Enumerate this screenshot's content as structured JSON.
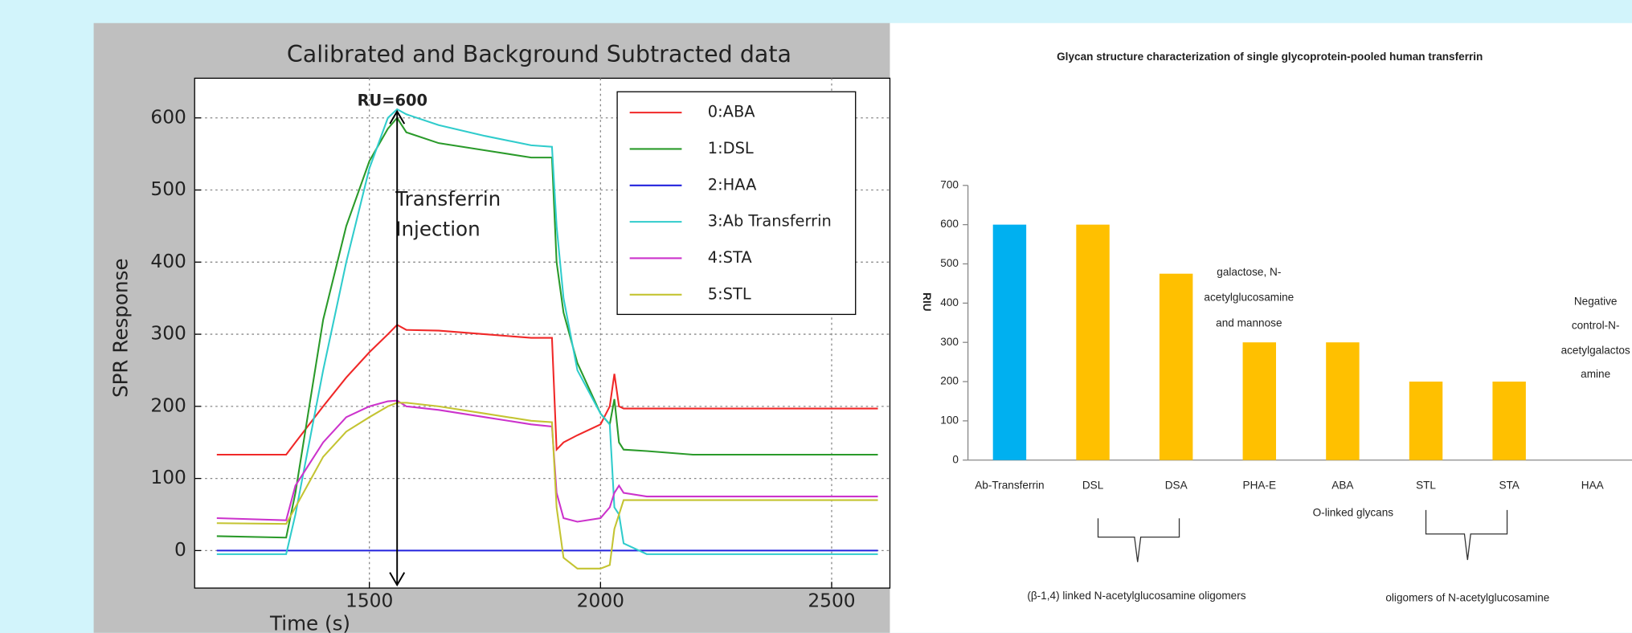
{
  "chart_data": [
    {
      "type": "line",
      "title": "Calibrated and Background Subtracted data",
      "x_label": "Time (s)",
      "y_label": "SPR Response",
      "annotations": [
        "RU=600",
        "Transferrin",
        "Injection"
      ],
      "arrow_x": 1560,
      "xlim": [
        1122,
        2626
      ],
      "ylim": [
        -52,
        655
      ],
      "xticks": [
        1500,
        2000,
        2500
      ],
      "yticks": [
        0,
        100,
        200,
        300,
        400,
        500,
        600
      ],
      "grid": true,
      "legend": "upper right",
      "x": [
        1170,
        1320,
        1340,
        1400,
        1450,
        1500,
        1540,
        1560,
        1580,
        1650,
        1750,
        1850,
        1895,
        1905,
        1920,
        1950,
        2000,
        2020,
        2030,
        2040,
        2050,
        2100,
        2200,
        2600
      ],
      "series": [
        {
          "name": "0:ABA",
          "color": "#f02828",
          "values": [
            133,
            133,
            150,
            200,
            240,
            275,
            300,
            313,
            306,
            305,
            300,
            295,
            295,
            140,
            150,
            160,
            175,
            200,
            245,
            200,
            197,
            197,
            197,
            197
          ]
        },
        {
          "name": "1:DSL",
          "color": "#2a9a2a",
          "values": [
            20,
            18,
            80,
            320,
            450,
            540,
            585,
            600,
            580,
            565,
            555,
            545,
            545,
            400,
            330,
            260,
            190,
            175,
            210,
            150,
            140,
            138,
            133,
            133
          ]
        },
        {
          "name": "2:HAA",
          "color": "#2222dd",
          "values": [
            0,
            0,
            0,
            0,
            0,
            0,
            0,
            0,
            0,
            0,
            0,
            0,
            0,
            0,
            0,
            0,
            0,
            0,
            0,
            0,
            0,
            0,
            0,
            0
          ]
        },
        {
          "name": "3:Ab Transferrin",
          "color": "#30cccc",
          "values": [
            -5,
            -5,
            50,
            250,
            400,
            530,
            600,
            612,
            605,
            590,
            575,
            562,
            560,
            450,
            350,
            250,
            190,
            175,
            60,
            50,
            10,
            -5,
            -5,
            -5
          ]
        },
        {
          "name": "4:STA",
          "color": "#cc33cc",
          "values": [
            45,
            42,
            90,
            150,
            185,
            200,
            207,
            208,
            200,
            195,
            185,
            175,
            172,
            80,
            45,
            40,
            45,
            60,
            80,
            90,
            80,
            75,
            75,
            75
          ]
        },
        {
          "name": "5:STL",
          "color": "#c4c432",
          "values": [
            38,
            37,
            60,
            130,
            165,
            185,
            200,
            205,
            205,
            200,
            190,
            180,
            178,
            60,
            -10,
            -25,
            -25,
            -20,
            30,
            50,
            70,
            70,
            70,
            70
          ]
        }
      ]
    },
    {
      "type": "bar",
      "title": "Glycan structure characterization of single glycoprotein-pooled human transferrin",
      "y_label": "RIU",
      "categories": [
        "Ab-Transferrin",
        "DSL",
        "DSA",
        "PHA-E",
        "ABA",
        "STL",
        "STA",
        "HAA"
      ],
      "values": [
        600,
        600,
        475,
        300,
        300,
        200,
        200,
        0
      ],
      "colors": [
        "#00b0f0",
        "#ffc000",
        "#ffc000",
        "#ffc000",
        "#ffc000",
        "#ffc000",
        "#ffc000",
        "#ffc000"
      ],
      "ylim": [
        0,
        700
      ],
      "yticks": [
        0,
        100,
        200,
        300,
        400,
        500,
        600,
        700
      ],
      "annotations": {
        "galactose": [
          "galactose, N-",
          "acetylglucosamine",
          "and mannose"
        ],
        "negative": [
          "Negative",
          "control-N-",
          "acetylgalactos",
          "amine"
        ],
        "o_linked": "O-linked glycans",
        "beta": "(β-1,4) linked N-acetylglucosamine oligomers",
        "oligomers": "oligomers of N-acetylglucosamine"
      }
    }
  ]
}
